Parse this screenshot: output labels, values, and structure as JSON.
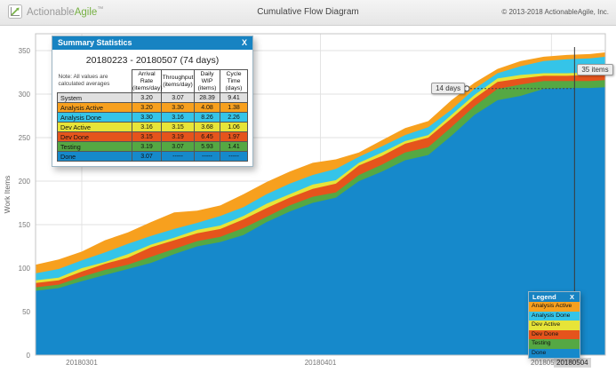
{
  "header": {
    "logo_part1": "Actionable",
    "logo_part2": "Agile",
    "logo_tm": "™",
    "title": "Cumulative Flow Diagram",
    "copyright": "© 2013-2018 ActionableAgile, Inc."
  },
  "summary_panel": {
    "title": "Summary Statistics",
    "close_label": "X",
    "date_range": "20180223 - 20180507 (74 days)",
    "note_line1": "Note: All values are",
    "note_line2": "calculated averages",
    "columns": [
      {
        "name": "Arrival Rate",
        "unit": "(items/day)"
      },
      {
        "name": "Throughput",
        "unit": "(items/day)"
      },
      {
        "name": "Daily WIP",
        "unit": "(items)"
      },
      {
        "name": "Cycle Time",
        "unit": "(days)"
      }
    ],
    "rows": [
      {
        "label": "System",
        "color": "#e0e0e0",
        "values": [
          "3.20",
          "3.07",
          "28.39",
          "9.41"
        ]
      },
      {
        "label": "Analysis Active",
        "color": "#f7a01e",
        "values": [
          "3.20",
          "3.30",
          "4.08",
          "1.38"
        ]
      },
      {
        "label": "Analysis Done",
        "color": "#35c4e8",
        "values": [
          "3.30",
          "3.16",
          "8.26",
          "2.26"
        ]
      },
      {
        "label": "Dev Active",
        "color": "#e7e438",
        "values": [
          "3.16",
          "3.15",
          "3.68",
          "1.06"
        ]
      },
      {
        "label": "Dev Done",
        "color": "#e5541c",
        "values": [
          "3.15",
          "3.19",
          "6.45",
          "1.97"
        ]
      },
      {
        "label": "Testing",
        "color": "#55a843",
        "values": [
          "3.19",
          "3.07",
          "5.93",
          "1.41"
        ]
      },
      {
        "label": "Done",
        "color": "#1689cb",
        "values": [
          "3.07",
          "-----",
          "-----",
          "-----"
        ]
      }
    ]
  },
  "legend": {
    "title": "Legend",
    "close_label": "X",
    "items": [
      {
        "label": "Analysis Active",
        "color": "#f7a01e"
      },
      {
        "label": "Analysis Done",
        "color": "#35c4e8"
      },
      {
        "label": "Dev Active",
        "color": "#e7e438"
      },
      {
        "label": "Dev Done",
        "color": "#e5541c"
      },
      {
        "label": "Testing",
        "color": "#55a843"
      },
      {
        "label": "Done",
        "color": "#1689cb"
      }
    ]
  },
  "annotations": {
    "cycle_time_label": "14 days",
    "wip_label": "35 items",
    "selected_date": "20180504",
    "marker_day": 56,
    "crosshair_day": 70
  },
  "chart_data": {
    "type": "area",
    "title": "Cumulative Flow Diagram",
    "ylabel": "Work Items",
    "xlim_days": [
      0,
      74
    ],
    "ylim": [
      0,
      356
    ],
    "grid": true,
    "yticks": [
      0,
      50,
      100,
      150,
      200,
      250,
      300,
      350
    ],
    "xticks": [
      {
        "day": 6,
        "label": "20180301",
        "dx": 0
      },
      {
        "day": 37,
        "label": "20180401",
        "dx": 0
      },
      {
        "day": 67,
        "label": "201805",
        "dx": -10
      }
    ],
    "days": [
      0,
      3,
      6,
      9,
      12,
      15,
      18,
      21,
      24,
      27,
      30,
      33,
      36,
      39,
      42,
      45,
      48,
      51,
      54,
      57,
      60,
      63,
      66,
      69,
      72,
      74
    ],
    "series": [
      {
        "name": "Analysis Active",
        "color": "#f7a01e",
        "values": [
          104,
          110,
          119,
          132,
          141,
          153,
          164,
          166,
          172,
          185,
          199,
          211,
          221,
          225,
          233,
          247,
          261,
          269,
          293,
          313,
          329,
          338,
          343,
          345,
          346,
          348
        ]
      },
      {
        "name": "Analysis Done",
        "color": "#35c4e8",
        "values": [
          94,
          99,
          109,
          118,
          128,
          137,
          145,
          152,
          160,
          170,
          185,
          197,
          207,
          214,
          228,
          240,
          253,
          262,
          282,
          306,
          324,
          332,
          338,
          340,
          341,
          343
        ]
      },
      {
        "name": "Dev Active",
        "color": "#e7e438",
        "values": [
          86,
          89,
          100,
          107,
          116,
          127,
          135,
          144,
          149,
          160,
          174,
          185,
          196,
          201,
          221,
          233,
          246,
          253,
          276,
          299,
          318,
          322,
          324,
          324,
          325,
          326
        ]
      },
      {
        "name": "Dev Done",
        "color": "#e5541c",
        "values": [
          83,
          86,
          96,
          105,
          112,
          124,
          132,
          140,
          145,
          156,
          169,
          181,
          191,
          197,
          218,
          229,
          243,
          250,
          272,
          295,
          314,
          318,
          321,
          321,
          322,
          323
        ]
      },
      {
        "name": "Testing",
        "color": "#55a843",
        "values": [
          78,
          81,
          90,
          98,
          104,
          113,
          122,
          131,
          136,
          146,
          159,
          172,
          182,
          187,
          207,
          219,
          233,
          239,
          262,
          286,
          306,
          311,
          315,
          315,
          315,
          316
        ]
      },
      {
        "name": "Done",
        "color": "#1689cb",
        "values": [
          74,
          77,
          85,
          92,
          99,
          106,
          116,
          125,
          130,
          138,
          153,
          165,
          175,
          181,
          200,
          211,
          224,
          230,
          252,
          276,
          293,
          298,
          306,
          307,
          307,
          308
        ]
      }
    ]
  }
}
